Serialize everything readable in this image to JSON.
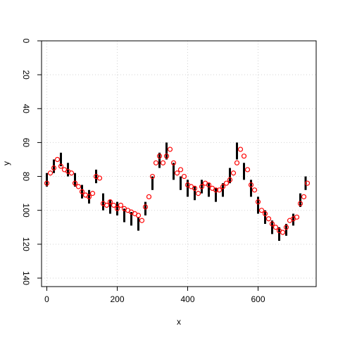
{
  "chart_data": {
    "type": "scatter",
    "title": "",
    "xlabel": "x",
    "ylabel": "y",
    "xlim": [
      -15,
      765
    ],
    "ylim": [
      0,
      145
    ],
    "y_reversed": true,
    "x_ticks": [
      0,
      200,
      400,
      600
    ],
    "y_ticks": [
      0,
      20,
      40,
      60,
      80,
      100,
      120,
      140
    ],
    "x_tick_labels": [
      "0",
      "200",
      "400",
      "600"
    ],
    "y_tick_labels": [
      "0",
      "20",
      "40",
      "60",
      "80",
      "100",
      "120",
      "140"
    ],
    "grid": true,
    "legend": "none",
    "series": [
      {
        "style": "vertical-segments",
        "color": "#000000",
        "x": [
          0,
          20,
          40,
          60,
          80,
          100,
          120,
          140,
          160,
          180,
          200,
          220,
          240,
          260,
          280,
          300,
          320,
          340,
          360,
          380,
          400,
          420,
          440,
          460,
          480,
          500,
          520,
          540,
          560,
          580,
          600,
          620,
          640,
          660,
          680,
          700,
          720,
          735
        ],
        "y_low": [
          78,
          70,
          66,
          72,
          78,
          85,
          88,
          76,
          90,
          94,
          95,
          99,
          101,
          104,
          95,
          80,
          66,
          60,
          72,
          80,
          82,
          86,
          82,
          84,
          87,
          84,
          75,
          60,
          72,
          82,
          92,
          100,
          106,
          110,
          108,
          102,
          90,
          80
        ],
        "y_high": [
          86,
          78,
          74,
          80,
          86,
          93,
          96,
          84,
          100,
          102,
          103,
          107,
          109,
          112,
          103,
          88,
          75,
          70,
          82,
          88,
          92,
          94,
          90,
          92,
          95,
          92,
          84,
          70,
          82,
          92,
          102,
          108,
          114,
          118,
          115,
          109,
          98,
          88
        ]
      },
      {
        "style": "open-circles",
        "color": "#ff0000",
        "x": [
          0,
          10,
          20,
          30,
          40,
          50,
          60,
          70,
          80,
          90,
          100,
          110,
          120,
          130,
          140,
          150,
          160,
          170,
          180,
          190,
          200,
          210,
          220,
          230,
          240,
          250,
          260,
          270,
          280,
          290,
          300,
          310,
          320,
          330,
          340,
          350,
          360,
          370,
          380,
          390,
          400,
          410,
          420,
          430,
          440,
          450,
          460,
          470,
          480,
          490,
          500,
          510,
          520,
          530,
          540,
          550,
          560,
          570,
          580,
          590,
          600,
          610,
          620,
          630,
          640,
          650,
          660,
          670,
          680,
          690,
          700,
          710,
          720,
          730,
          740
        ],
        "y": [
          84,
          78,
          75,
          70,
          74,
          76,
          77,
          78,
          84,
          86,
          89,
          91,
          92,
          90,
          80,
          81,
          96,
          97,
          95,
          97,
          99,
          97,
          99,
          100,
          101,
          102,
          103,
          106,
          98,
          92,
          80,
          72,
          68,
          72,
          68,
          64,
          72,
          78,
          76,
          80,
          85,
          86,
          87,
          90,
          86,
          84,
          85,
          87,
          88,
          88,
          86,
          84,
          82,
          78,
          72,
          64,
          68,
          76,
          85,
          88,
          95,
          100,
          102,
          105,
          108,
          110,
          112,
          113,
          110,
          106,
          105,
          104,
          96,
          92,
          84
        ]
      }
    ]
  }
}
